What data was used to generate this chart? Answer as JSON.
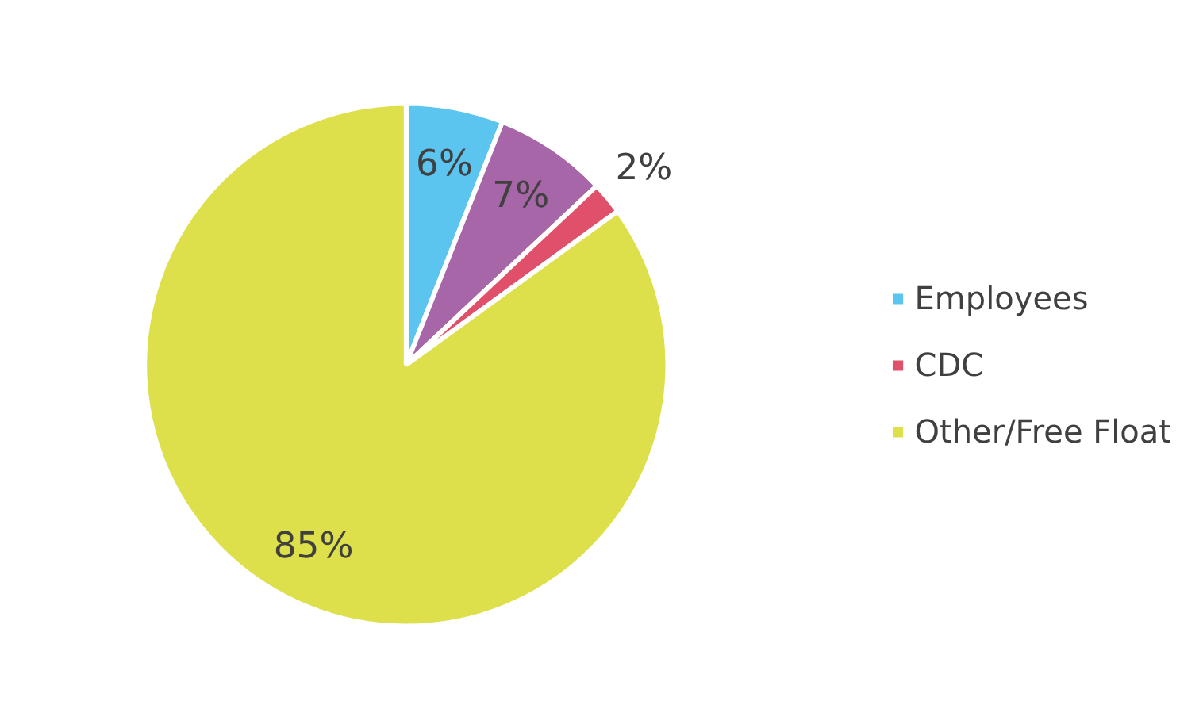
{
  "chart_data": {
    "type": "pie",
    "categories": [
      "Employees",
      null,
      "CDC",
      "Other/Free Float"
    ],
    "values": [
      6,
      7,
      2,
      85
    ],
    "colors": [
      "#5bc4ef",
      "#a666a8",
      "#e0506a",
      "#dde04a"
    ],
    "value_labels": [
      "6%",
      "7%",
      "2%",
      "85%"
    ],
    "legend": "right"
  }
}
